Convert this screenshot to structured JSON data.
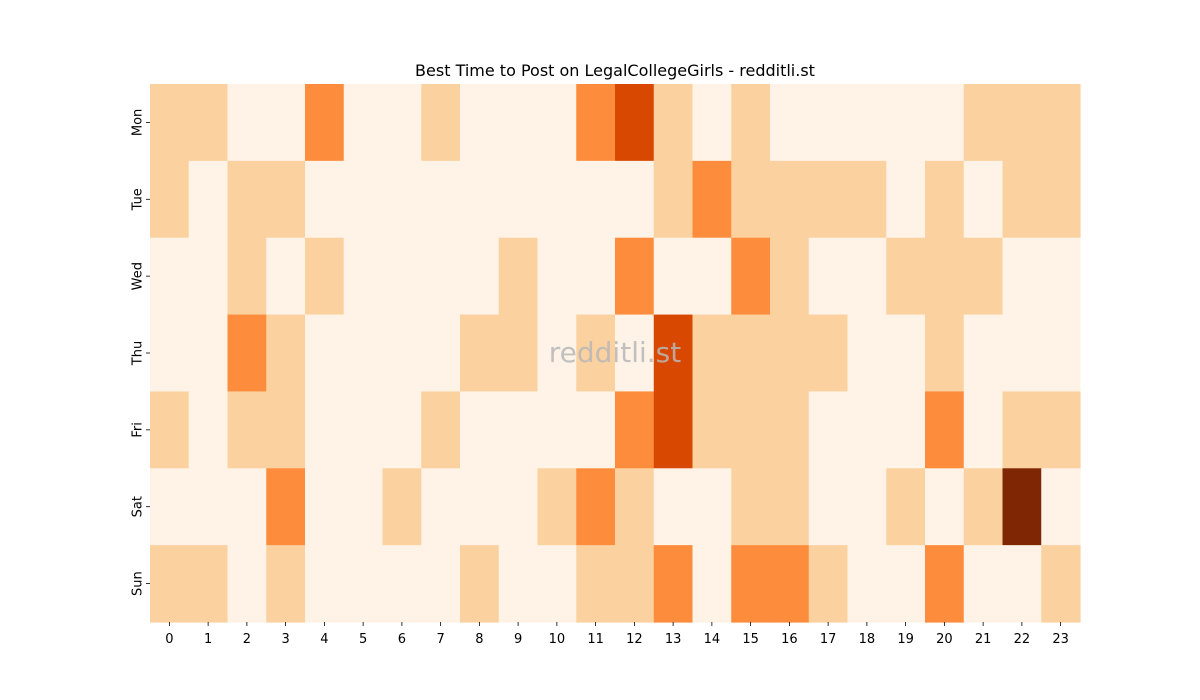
{
  "chart_data": {
    "type": "heatmap",
    "title": "Best Time to Post on LegalCollegeGirls - redditli.st",
    "watermark": "redditli.st",
    "xlabel": "",
    "ylabel": "",
    "x_categories": [
      "0",
      "1",
      "2",
      "3",
      "4",
      "5",
      "6",
      "7",
      "8",
      "9",
      "10",
      "11",
      "12",
      "13",
      "14",
      "15",
      "16",
      "17",
      "18",
      "19",
      "20",
      "21",
      "22",
      "23"
    ],
    "y_categories": [
      "Mon",
      "Tue",
      "Wed",
      "Thu",
      "Fri",
      "Sat",
      "Sun"
    ],
    "colorscale": "Oranges",
    "values": [
      [
        1,
        1,
        0,
        0,
        2,
        0,
        0,
        1,
        0,
        0,
        0,
        2,
        4,
        1,
        0,
        1,
        0,
        0,
        0,
        0,
        0,
        1,
        1,
        1
      ],
      [
        1,
        0,
        1,
        1,
        0,
        0,
        0,
        0,
        0,
        0,
        0,
        0,
        0,
        1,
        2,
        1,
        1,
        1,
        1,
        0,
        1,
        0,
        1,
        1
      ],
      [
        0,
        0,
        1,
        0,
        1,
        0,
        0,
        0,
        0,
        1,
        0,
        0,
        2,
        0,
        0,
        2,
        1,
        0,
        0,
        1,
        1,
        1,
        0,
        0
      ],
      [
        0,
        0,
        2,
        1,
        0,
        0,
        0,
        0,
        1,
        1,
        0,
        1,
        0,
        4,
        1,
        1,
        1,
        1,
        0,
        0,
        1,
        0,
        0,
        0
      ],
      [
        1,
        0,
        1,
        1,
        0,
        0,
        0,
        1,
        0,
        0,
        0,
        0,
        2,
        4,
        1,
        1,
        1,
        0,
        0,
        0,
        2,
        0,
        1,
        1
      ],
      [
        0,
        0,
        0,
        2,
        0,
        0,
        1,
        0,
        0,
        0,
        1,
        2,
        1,
        0,
        0,
        1,
        1,
        0,
        0,
        1,
        0,
        1,
        5,
        0
      ],
      [
        1,
        1,
        0,
        1,
        0,
        0,
        0,
        0,
        1,
        0,
        0,
        1,
        1,
        2,
        0,
        2,
        2,
        1,
        0,
        0,
        2,
        0,
        0,
        1
      ]
    ],
    "level_colors": [
      "#fef3e6",
      "#fcd1a0",
      "#fd8d3c",
      "#f16913",
      "#d94801",
      "#7f2704"
    ]
  }
}
